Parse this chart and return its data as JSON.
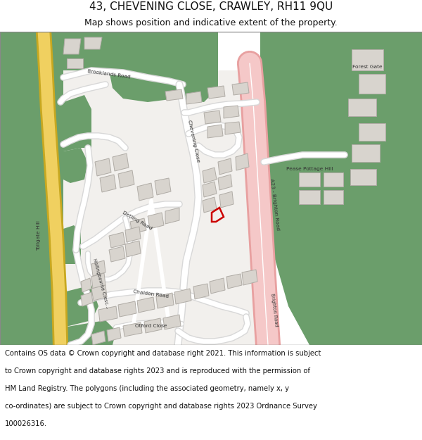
{
  "title_line1": "43, CHEVENING CLOSE, CRAWLEY, RH11 9QU",
  "title_line2": "Map shows position and indicative extent of the property.",
  "footer_lines": [
    "Contains OS data © Crown copyright and database right 2021. This information is subject",
    "to Crown copyright and database rights 2023 and is reproduced with the permission of",
    "HM Land Registry. The polygons (including the associated geometry, namely x, y",
    "co-ordinates) are subject to Crown copyright and database rights 2023 Ordnance Survey",
    "100026316."
  ],
  "bg_color": "#ffffff",
  "map_bg": "#f2f0ed",
  "green_color": "#6b9e6b",
  "building_color": "#d8d4ce",
  "building_outline": "#b0aca6",
  "pink_road": "#f5c8c8",
  "pink_road_edge": "#e8a0a0",
  "yellow_road": "#f0d060",
  "yellow_road_edge": "#c8a820",
  "road_white": "#ffffff",
  "road_gray": "#d8d8d8",
  "red_poly": "#cc0000",
  "border_color": "#888888",
  "title_fontsize": 11,
  "subtitle_fontsize": 9,
  "footer_fontsize": 7.2
}
